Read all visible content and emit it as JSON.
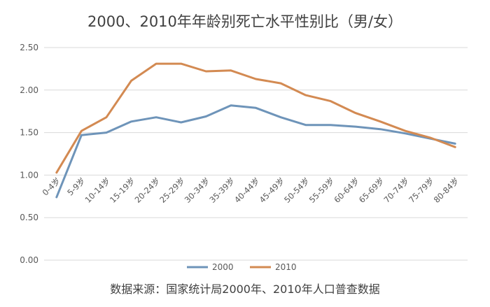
{
  "chart_data": {
    "type": "line",
    "title": "2000、2010年年龄别死亡水平性别比（男/女）",
    "source": "数据来源：国家统计局2000年、2010年人口普查数据",
    "categories": [
      "0-4岁",
      "5-9岁",
      "10-14岁",
      "15-19岁",
      "20-24岁",
      "25-29岁",
      "30-34岁",
      "35-39岁",
      "40-44岁",
      "45-49岁",
      "50-54岁",
      "55-59岁",
      "60-64岁",
      "65-69岁",
      "70-74岁",
      "75-79岁",
      "80-84岁"
    ],
    "y_ticks": [
      "0.00",
      "0.50",
      "1.00",
      "1.50",
      "2.00",
      "2.50"
    ],
    "ylim": [
      0,
      2.5
    ],
    "grid": true,
    "legend_position": "bottom",
    "series": [
      {
        "name": "2000",
        "color": "#6e94b9",
        "values": [
          0.74,
          1.47,
          1.5,
          1.63,
          1.68,
          1.62,
          1.69,
          1.82,
          1.79,
          1.68,
          1.59,
          1.59,
          1.57,
          1.54,
          1.49,
          1.43,
          1.37
        ]
      },
      {
        "name": "2010",
        "color": "#d38a52",
        "values": [
          1.03,
          1.52,
          1.68,
          2.11,
          2.31,
          2.31,
          2.22,
          2.23,
          2.13,
          2.08,
          1.94,
          1.87,
          1.73,
          1.63,
          1.52,
          1.44,
          1.33
        ]
      }
    ]
  }
}
